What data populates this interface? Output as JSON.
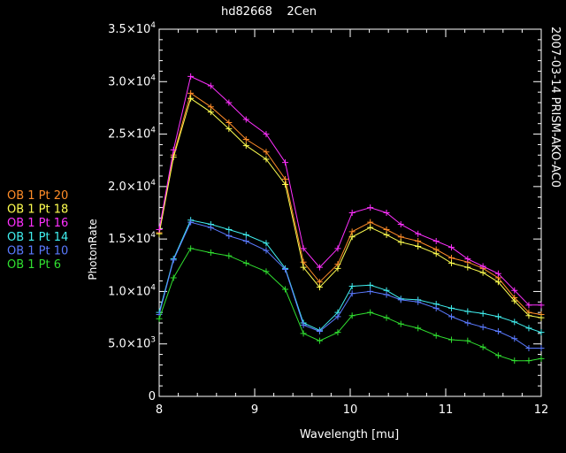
{
  "chart_data": {
    "type": "line",
    "title": "hd82668    2Cen",
    "side_label": "2007-03-14 PRISM-AKO-AC0",
    "xlabel": "Wavelength [mu]",
    "ylabel": "PhotonRate",
    "xlim": [
      8,
      12
    ],
    "ylim": [
      0,
      35000
    ],
    "x_ticks": [
      {
        "v": 8,
        "label": "8"
      },
      {
        "v": 9,
        "label": "9"
      },
      {
        "v": 10,
        "label": "10"
      },
      {
        "v": 11,
        "label": "11"
      },
      {
        "v": 12,
        "label": "12"
      }
    ],
    "y_ticks": [
      {
        "v": 0,
        "mant": "0",
        "exp": ""
      },
      {
        "v": 5000,
        "mant": "5.0×10",
        "exp": "3"
      },
      {
        "v": 10000,
        "mant": "1.0×10",
        "exp": "4"
      },
      {
        "v": 15000,
        "mant": "1.5×10",
        "exp": "4"
      },
      {
        "v": 20000,
        "mant": "2.0×10",
        "exp": "4"
      },
      {
        "v": 25000,
        "mant": "2.5×10",
        "exp": "4"
      },
      {
        "v": 30000,
        "mant": "3.0×10",
        "exp": "4"
      },
      {
        "v": 35000,
        "mant": "3.5×10",
        "exp": "4"
      }
    ],
    "grid": false,
    "legend_placement": "left",
    "x": [
      8.0,
      8.15,
      8.33,
      8.54,
      8.73,
      8.91,
      9.12,
      9.32,
      9.51,
      9.68,
      9.87,
      10.02,
      10.21,
      10.38,
      10.53,
      10.71,
      10.9,
      11.06,
      11.23,
      11.39,
      11.55,
      11.72,
      11.87,
      12.0
    ],
    "series": [
      {
        "name": "OB 1 Pt 20",
        "color": "#ff8c28",
        "values": [
          15600,
          23000,
          28900,
          27600,
          26100,
          24500,
          23300,
          20700,
          12800,
          10900,
          12600,
          15700,
          16600,
          15900,
          15200,
          14800,
          14000,
          13200,
          12800,
          12200,
          11300,
          9400,
          8000,
          7800
        ]
      },
      {
        "name": "OB 1 Pt 18",
        "color": "#ffff50",
        "values": [
          15500,
          22800,
          28400,
          27100,
          25500,
          23900,
          22600,
          20200,
          12300,
          10400,
          12200,
          15200,
          16100,
          15400,
          14700,
          14300,
          13600,
          12700,
          12300,
          11800,
          10900,
          9100,
          7700,
          7500
        ]
      },
      {
        "name": "OB 1 Pt 16",
        "color": "#ff30ff",
        "values": [
          15900,
          23500,
          30500,
          29600,
          28000,
          26400,
          25000,
          22300,
          14100,
          12300,
          14100,
          17500,
          18000,
          17500,
          16400,
          15500,
          14800,
          14200,
          13100,
          12400,
          11700,
          10100,
          8700,
          8700
        ]
      },
      {
        "name": "OB 1 Pt 14",
        "color": "#40f0f0",
        "values": [
          8000,
          13100,
          16800,
          16400,
          15900,
          15400,
          14600,
          12200,
          7000,
          6300,
          8000,
          10500,
          10600,
          10100,
          9300,
          9200,
          8800,
          8400,
          8100,
          7900,
          7600,
          7100,
          6500,
          6100
        ]
      },
      {
        "name": "OB 1 Pt 10",
        "color": "#5a7aff",
        "values": [
          7800,
          13000,
          16600,
          16100,
          15300,
          14800,
          13900,
          12100,
          6800,
          6200,
          7600,
          9800,
          10000,
          9700,
          9200,
          9000,
          8400,
          7600,
          7000,
          6600,
          6200,
          5500,
          4600,
          4600
        ]
      },
      {
        "name": "OB 1 Pt 6",
        "color": "#30e030",
        "values": [
          7400,
          11300,
          14100,
          13700,
          13400,
          12700,
          11900,
          10200,
          6000,
          5300,
          6100,
          7700,
          8000,
          7500,
          6900,
          6500,
          5800,
          5400,
          5300,
          4700,
          3900,
          3400,
          3400,
          3600
        ]
      }
    ]
  }
}
